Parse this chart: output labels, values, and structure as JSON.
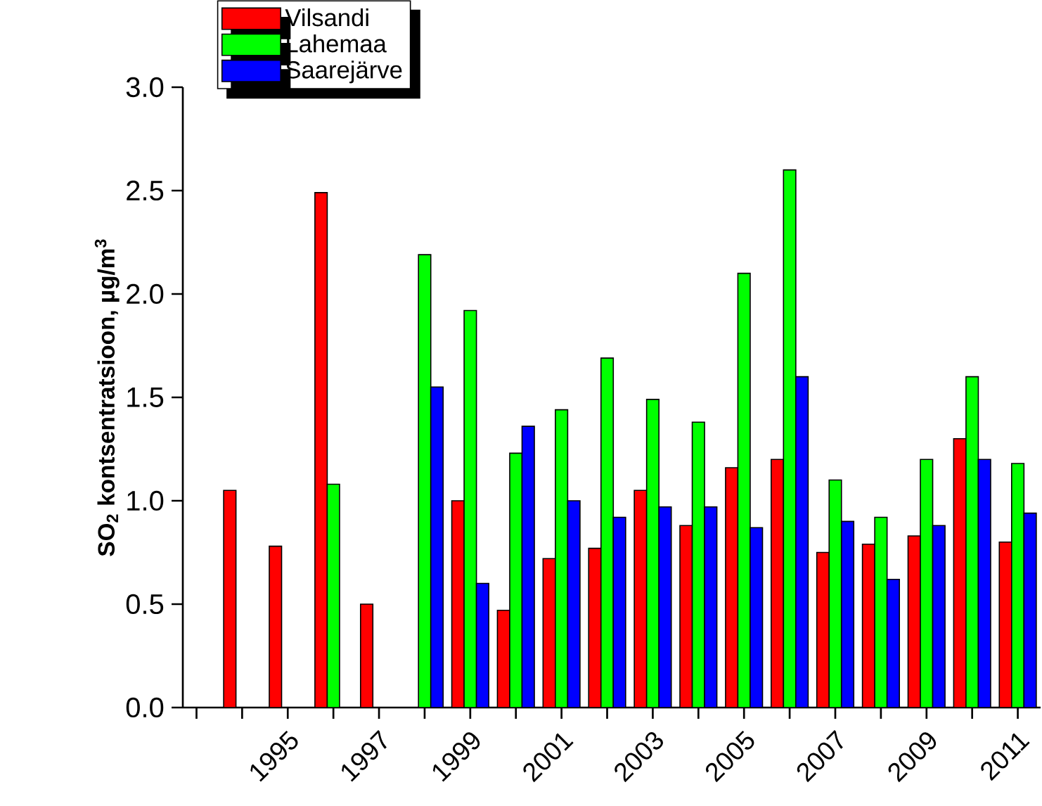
{
  "chart_data": {
    "type": "bar",
    "ylabel": "SO$_{2}$ kontsentratsioon, µg/m$^{3}$",
    "x": [
      1994,
      1995,
      1996,
      1997,
      1998,
      1999,
      2000,
      2001,
      2002,
      2003,
      2004,
      2005,
      2006,
      2007,
      2008,
      2009,
      2010,
      2011
    ],
    "series": [
      {
        "name": "Vilsandi",
        "color": "#ff0000",
        "values": [
          1.05,
          0.78,
          2.49,
          0.5,
          null,
          1.0,
          0.47,
          0.72,
          0.77,
          1.05,
          0.88,
          1.16,
          1.2,
          0.75,
          0.79,
          0.83,
          1.3,
          0.8
        ]
      },
      {
        "name": "Lahemaa",
        "color": "#00ff00",
        "values": [
          null,
          null,
          1.08,
          null,
          2.19,
          1.92,
          1.23,
          1.44,
          1.69,
          1.49,
          1.38,
          2.1,
          2.6,
          1.1,
          0.92,
          1.2,
          1.6,
          1.18
        ]
      },
      {
        "name": "Saarejärve",
        "color": "#0000ff",
        "values": [
          null,
          null,
          null,
          null,
          1.55,
          0.6,
          1.36,
          1.0,
          0.92,
          0.97,
          0.97,
          0.87,
          1.6,
          0.9,
          0.62,
          0.88,
          1.2,
          0.94
        ]
      }
    ],
    "xlim": [
      1992.7,
      2011.5
    ],
    "xticks": [
      {
        "value": 1993,
        "label": null
      },
      {
        "value": 1994,
        "label": null
      },
      1995,
      {
        "value": 1996,
        "label": null
      },
      1997,
      {
        "value": 1998,
        "label": null
      },
      1999,
      {
        "value": 2000,
        "label": null
      },
      2001,
      {
        "value": 2002,
        "label": null
      },
      2003,
      {
        "value": 2004,
        "label": null
      },
      2005,
      {
        "value": 2006,
        "label": null
      },
      2007,
      {
        "value": 2008,
        "label": null
      },
      2009,
      {
        "value": 2010,
        "label": null
      },
      2011
    ],
    "ylim": [
      0,
      3.0
    ],
    "yticks": [
      {
        "value": 0,
        "label": "0.0"
      },
      0.5,
      {
        "value": 1,
        "label": "1.0"
      },
      1.5,
      {
        "value": 2,
        "label": "2.0"
      },
      2.5,
      {
        "value": 3,
        "label": "3.0"
      }
    ],
    "legend": "top left",
    "grid": false
  }
}
